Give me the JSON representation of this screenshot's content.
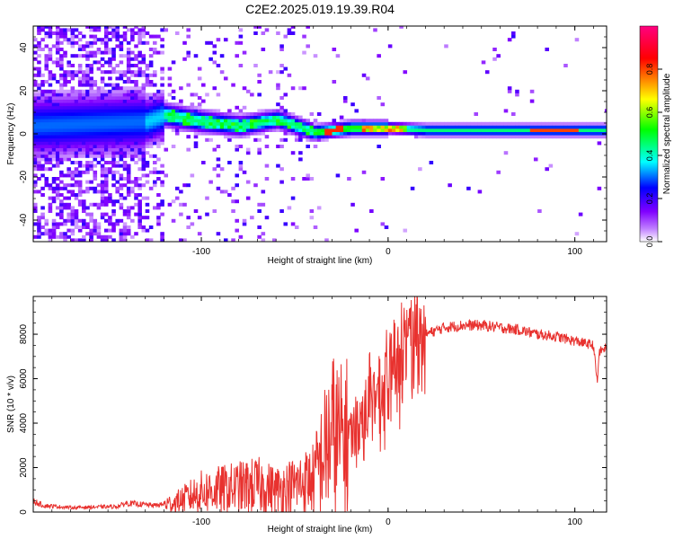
{
  "figure_title": "C2E2.2025.019.19.39.R04",
  "chart_data": [
    {
      "type": "heatmap",
      "title": "C2E2.2025.019.19.39.R04",
      "xlabel": "Height of straight line (km)",
      "ylabel": "Frequency (Hz)",
      "xlim": [
        -190,
        117
      ],
      "ylim": [
        -50,
        50
      ],
      "x_ticks": [
        -100,
        0,
        100
      ],
      "x_tick_labels": [
        "-100",
        "0",
        "100"
      ],
      "y_ticks": [
        -40,
        -20,
        0,
        20,
        40
      ],
      "y_tick_labels": [
        "-40",
        "-20",
        "0",
        "20",
        "40"
      ],
      "colorbar": {
        "label": "Normalized spectral amplitude",
        "range": [
          0,
          1
        ],
        "ticks": [
          0.0,
          0.2,
          0.4,
          0.6,
          0.8
        ],
        "tick_labels": [
          "0.0",
          "0.2",
          "0.4",
          "0.6",
          "0.8"
        ],
        "colors": [
          "#ffffff",
          "#8000ff",
          "#0000ff",
          "#00ffff",
          "#00ff00",
          "#ffff00",
          "#ff0000",
          "#ff0080"
        ]
      },
      "ridge": {
        "x": [
          -190,
          -130,
          -120,
          -100,
          -80,
          -60,
          -40,
          -20,
          0,
          20,
          50,
          80,
          100,
          117
        ],
        "y": [
          3,
          5,
          8,
          5,
          3,
          6,
          0,
          2,
          2,
          1,
          1,
          1,
          1,
          1
        ]
      }
    },
    {
      "type": "line",
      "xlabel": "Height of straight line (km)",
      "ylabel": "SNR (10 * v/v)",
      "xlim": [
        -190,
        117
      ],
      "ylim": [
        0,
        9700
      ],
      "x_ticks": [
        -100,
        0,
        100
      ],
      "x_tick_labels": [
        "-100",
        "0",
        "100"
      ],
      "y_ticks": [
        0,
        2000,
        4000,
        6000,
        8000
      ],
      "y_tick_labels": [
        "0",
        "2000",
        "4000",
        "6000",
        "8000"
      ],
      "color": "#e8322f",
      "envelope": {
        "x": [
          -190,
          -185,
          -170,
          -145,
          -140,
          -125,
          -115,
          -100,
          -90,
          -80,
          -70,
          -60,
          -50,
          -40,
          -30,
          -25,
          -20,
          -15,
          -10,
          -5,
          0,
          5,
          10,
          15,
          20,
          30,
          40,
          50,
          60,
          70,
          80,
          90,
          100,
          105,
          110,
          112,
          113,
          117
        ],
        "y": [
          500,
          300,
          200,
          250,
          400,
          300,
          400,
          900,
          1000,
          1100,
          1200,
          1000,
          1200,
          1500,
          3500,
          3200,
          3500,
          4200,
          4800,
          5200,
          5800,
          6800,
          7800,
          7800,
          8000,
          8300,
          8400,
          8400,
          8300,
          8200,
          8000,
          7900,
          7700,
          7600,
          7500,
          5800,
          7200,
          7400
        ]
      }
    }
  ]
}
